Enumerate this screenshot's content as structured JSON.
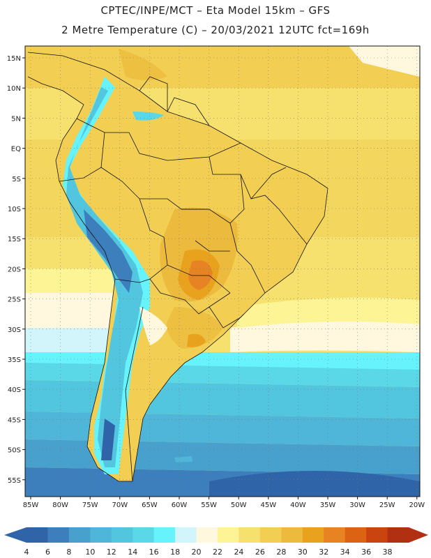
{
  "header": {
    "line1": "CPTEC/INPE/MCT –  Eta Model 15km – GFS",
    "line2": "2 Metre Temperature (C) – 20/03/2021 12UTC fct=169h"
  },
  "axes": {
    "lat_labels": [
      "15N",
      "10N",
      "5N",
      "EQ",
      "5S",
      "10S",
      "15S",
      "20S",
      "25S",
      "30S",
      "35S",
      "40S",
      "45S",
      "50S",
      "55S"
    ],
    "lon_labels": [
      "85W",
      "80W",
      "75W",
      "70W",
      "65W",
      "60W",
      "55W",
      "50W",
      "45W",
      "40W",
      "35W",
      "30W",
      "25W",
      "20W"
    ]
  },
  "colorbar": {
    "labels": [
      "4",
      "6",
      "8",
      "10",
      "12",
      "14",
      "16",
      "18",
      "20",
      "22",
      "24",
      "26",
      "28",
      "30",
      "32",
      "34",
      "36",
      "38"
    ],
    "colors": [
      "#2f65a8",
      "#3d7fbd",
      "#48a0cc",
      "#4fb6d9",
      "#52c6de",
      "#5ad8e8",
      "#66f3fb",
      "#d2f4fb",
      "#fff8de",
      "#fdf496",
      "#f6e06e",
      "#f2cf52",
      "#ecbb3e",
      "#e8a21d",
      "#e88323",
      "#dc6214",
      "#c9440e",
      "#b23012"
    ],
    "left_arrow_color": "#2f65a8",
    "right_arrow_color": "#b23012"
  }
}
